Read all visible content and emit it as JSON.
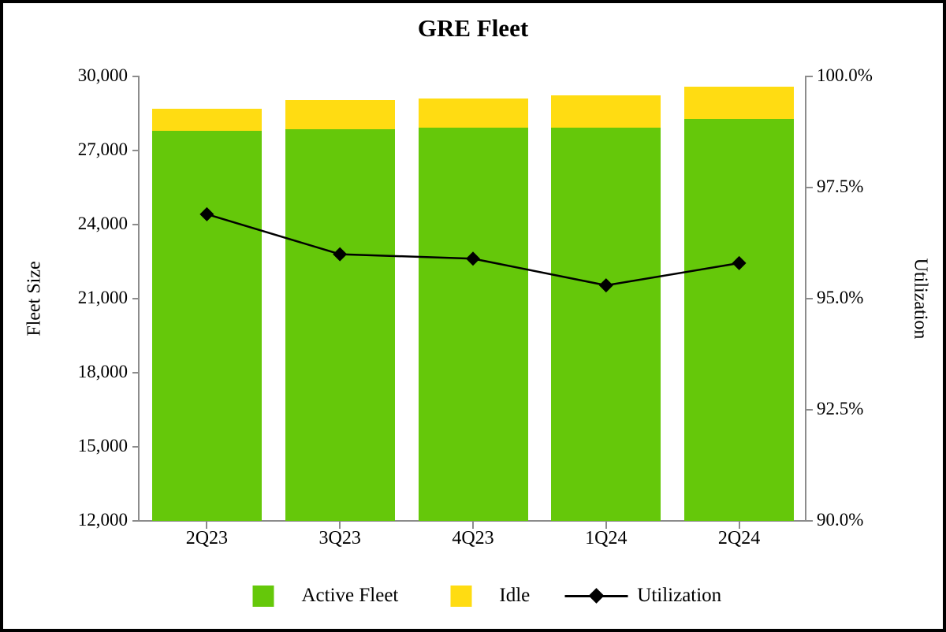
{
  "title": "GRE Fleet",
  "left_axis": {
    "label": "Fleet Size",
    "tick_labels": [
      "30,000",
      "27,000",
      "24,000",
      "21,000",
      "18,000",
      "15,000",
      "12,000"
    ],
    "min": 12000,
    "max": 30000,
    "step": 3000
  },
  "right_axis": {
    "label": "Utilization",
    "tick_labels": [
      "100.0%",
      "97.5%",
      "95.0%",
      "92.5%",
      "90.0%"
    ],
    "min": 90.0,
    "max": 100.0,
    "step": 2.5
  },
  "colors": {
    "active_fleet": "#65C80A",
    "idle": "#FFDC12",
    "utilization_line": "#000000",
    "axis": "#8c8c8c",
    "text": "#000000",
    "background": "#ffffff"
  },
  "chart_data": {
    "type": "bar",
    "subtype": "stacked-bars-with-line-overlay",
    "title": "GRE Fleet",
    "categories": [
      "2Q23",
      "3Q23",
      "4Q23",
      "1Q24",
      "2Q24"
    ],
    "series": [
      {
        "name": "Active Fleet",
        "type": "bar",
        "stack": "fleet",
        "axis": "left",
        "color": "#65C80A",
        "values": [
          27800,
          27860,
          27930,
          27930,
          28290
        ]
      },
      {
        "name": "Idle",
        "type": "bar",
        "stack": "fleet",
        "axis": "left",
        "color": "#FFDC12",
        "values": [
          890,
          1180,
          1170,
          1300,
          1300
        ]
      },
      {
        "name": "Utilization",
        "type": "line",
        "axis": "right",
        "color": "#000000",
        "marker": "diamond",
        "values": [
          96.9,
          96.0,
          95.9,
          95.3,
          95.8
        ]
      }
    ],
    "xlabel": "",
    "ylabel": "Fleet Size",
    "y2label": "Utilization",
    "ylim": [
      12000,
      30000
    ],
    "y2lim": [
      90.0,
      100.0
    ],
    "grid": false,
    "legend_position": "bottom"
  },
  "legend": {
    "items": [
      {
        "label": "Active Fleet",
        "swatch": "square",
        "color": "#65C80A"
      },
      {
        "label": "Idle",
        "swatch": "square",
        "color": "#FFDC12"
      },
      {
        "label": "Utilization",
        "swatch": "line-diamond",
        "color": "#000000"
      }
    ]
  }
}
